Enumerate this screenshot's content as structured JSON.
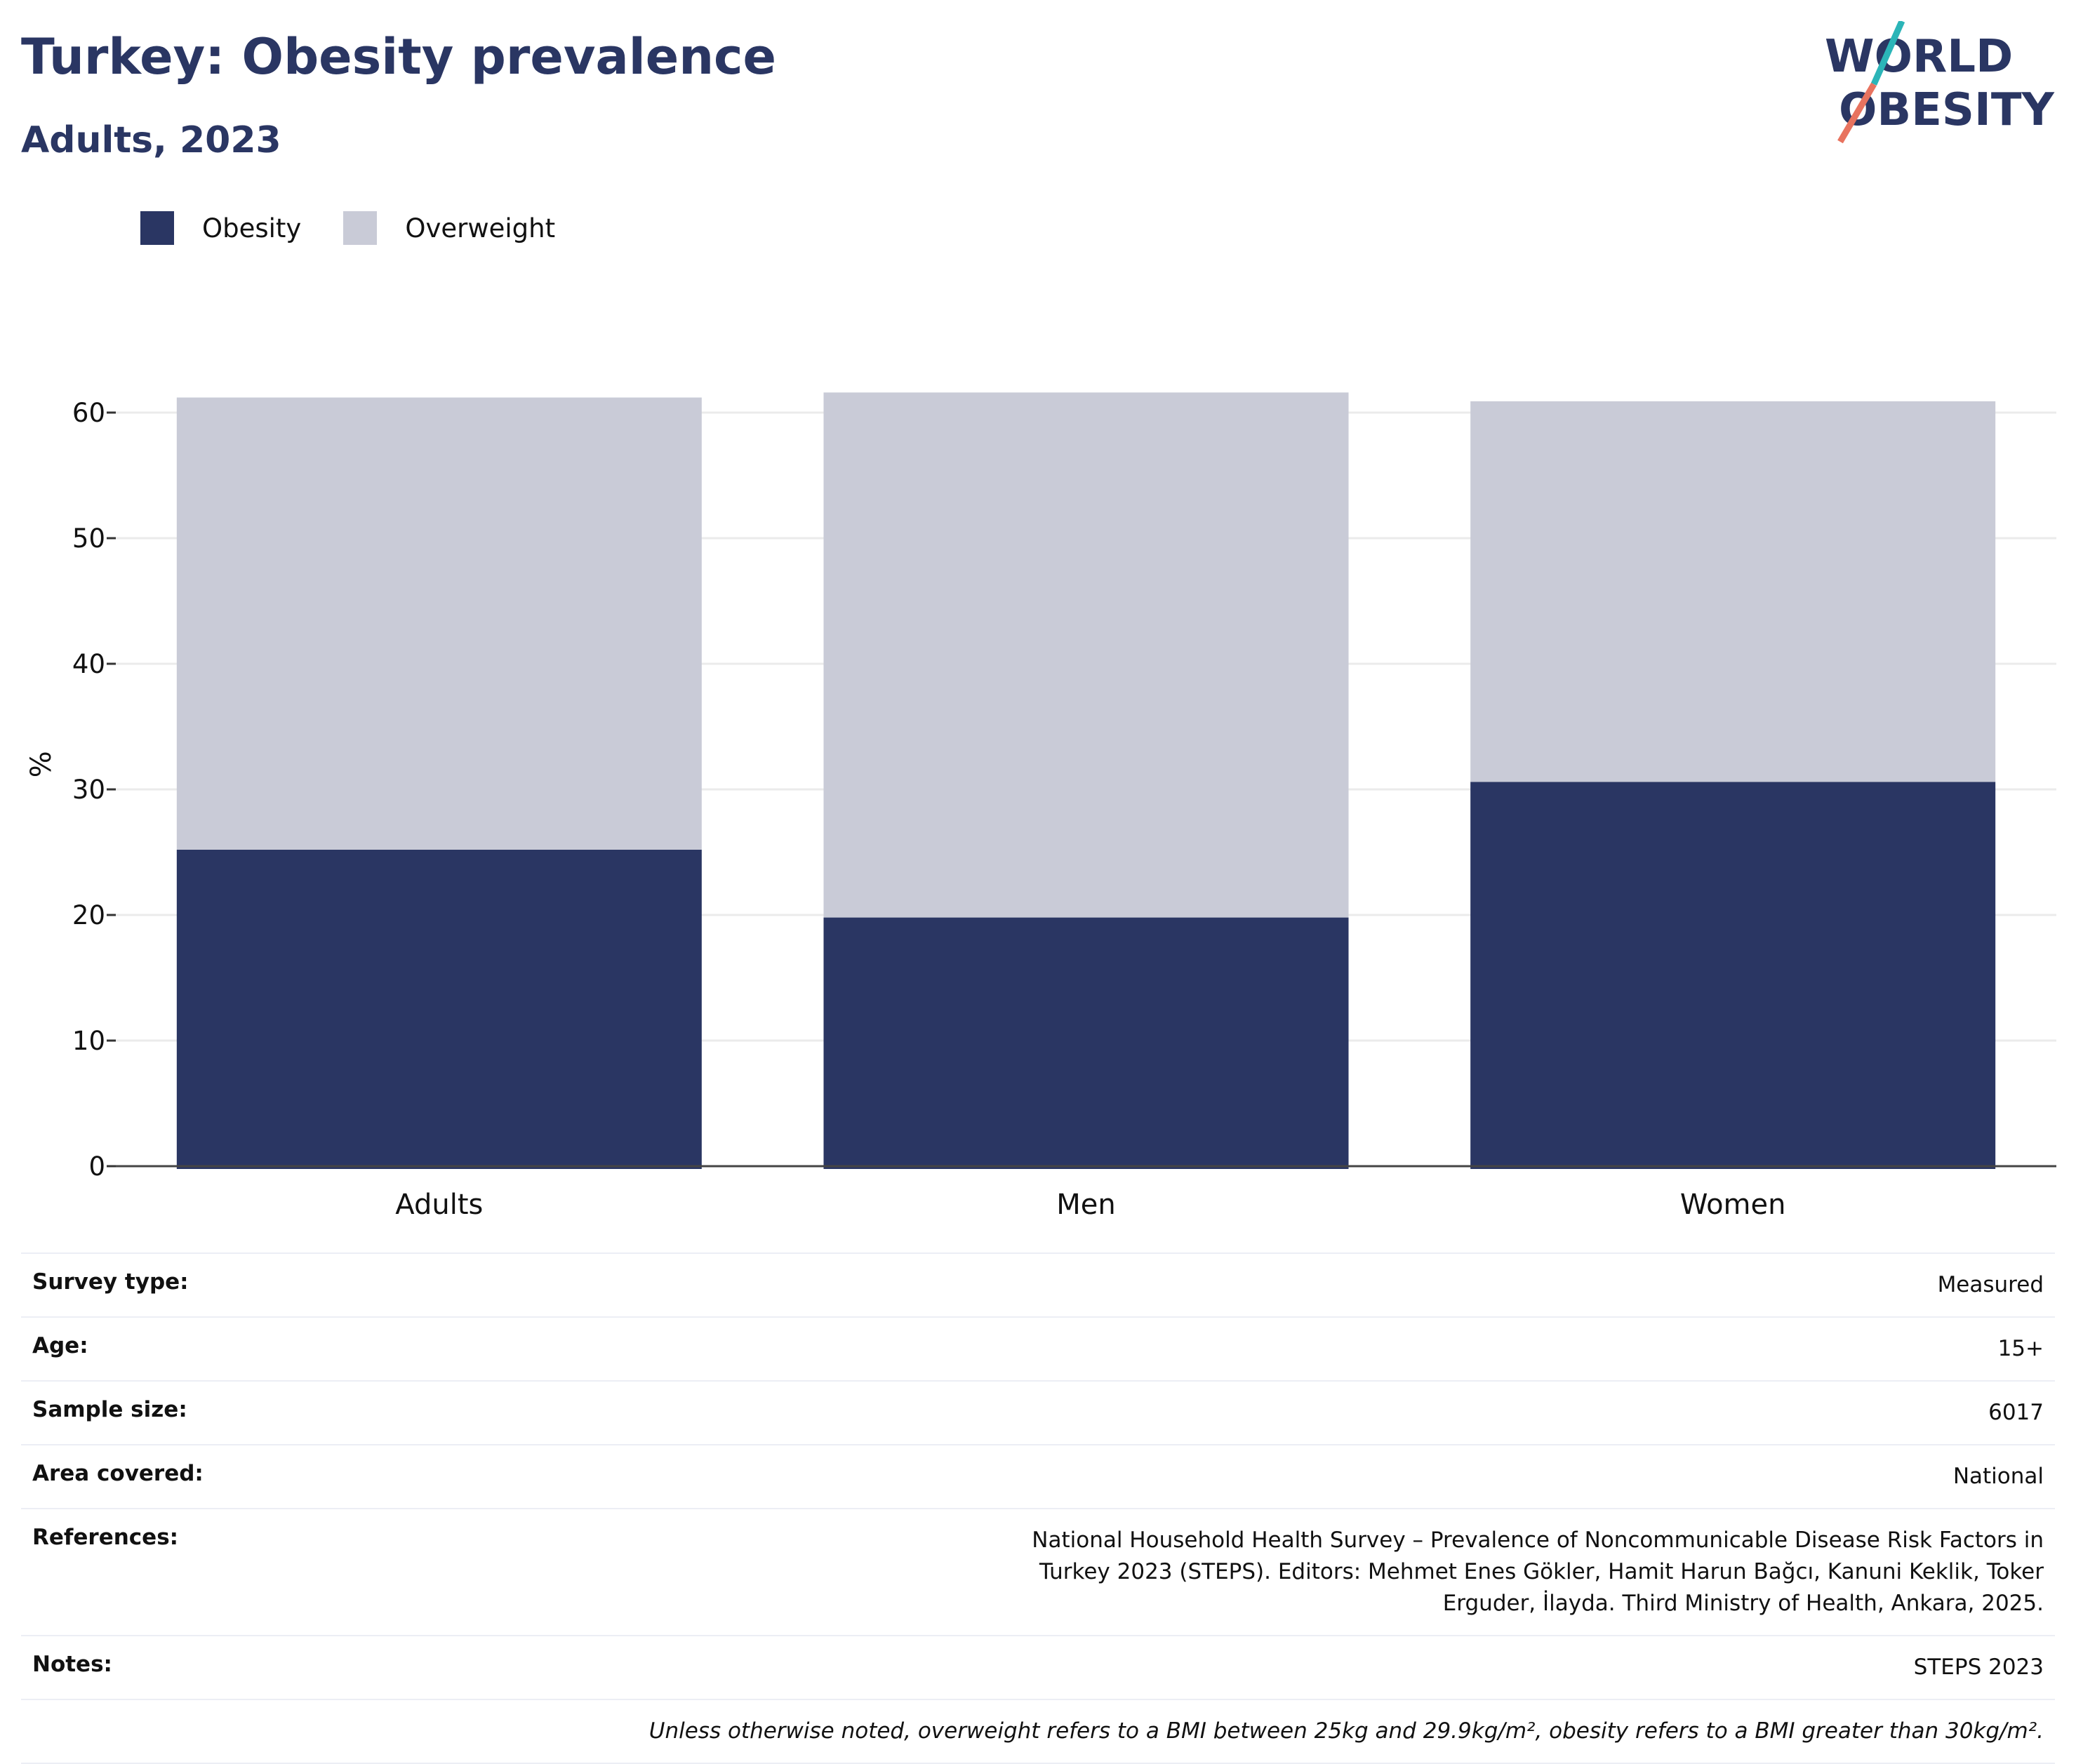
{
  "header": {
    "title": "Turkey: Obesity prevalence",
    "subtitle": "Adults, 2023"
  },
  "logo": {
    "line1": "WORLD",
    "line2": "OBESITY",
    "accent_teal": "#2bb5b8",
    "accent_coral": "#e8735f"
  },
  "chart_data": {
    "type": "bar",
    "stacked": true,
    "categories": [
      "Adults",
      "Men",
      "Women"
    ],
    "series": [
      {
        "name": "Obesity",
        "color": "#2a3663",
        "values": [
          25.2,
          19.8,
          30.6
        ]
      },
      {
        "name": "Overweight",
        "color": "#c9cbd7",
        "values": [
          36.0,
          41.8,
          30.3
        ]
      }
    ],
    "ylabel": "%",
    "xlabel": "",
    "ylim": [
      0,
      64
    ],
    "yticks": [
      0,
      10,
      20,
      30,
      40,
      50,
      60
    ],
    "grid": true,
    "legend": "top-left"
  },
  "info": [
    {
      "key": "Survey type:",
      "value": "Measured"
    },
    {
      "key": "Age:",
      "value": "15+"
    },
    {
      "key": "Sample size:",
      "value": "6017"
    },
    {
      "key": "Area covered:",
      "value": "National"
    },
    {
      "key": "References:",
      "value": "National Household Health Survey – Prevalence of Noncommunicable Disease Risk Factors in Turkey 2023 (STEPS). Editors: Mehmet Enes Gökler, Hamit Harun Bağcı, Kanuni Keklik, Toker Erguder, İlayda. Third Ministry of Health, Ankara, 2025."
    },
    {
      "key": "Notes:",
      "value": "STEPS 2023"
    }
  ],
  "footnote": "Unless otherwise noted, overweight refers to a BMI between 25kg and 29.9kg/m², obesity refers to a BMI greater than 30kg/m²."
}
